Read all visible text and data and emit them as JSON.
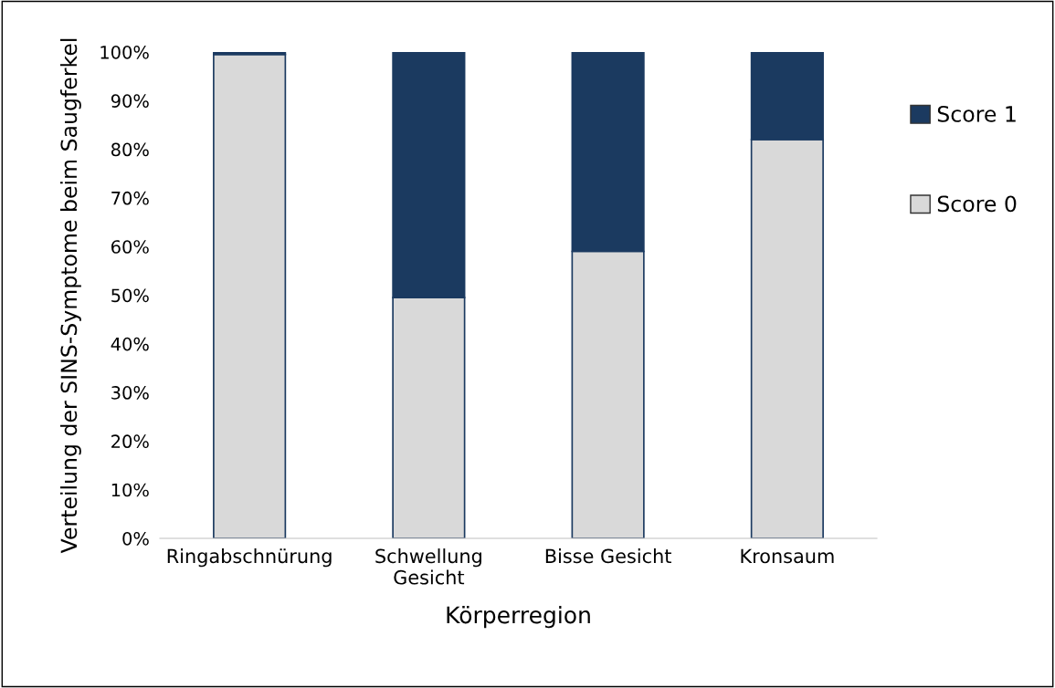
{
  "chart_data": {
    "type": "bar",
    "stacked": true,
    "xlabel": "Körperregion",
    "ylabel": "Verteilung der SINS-Symptome beim Saugferkel",
    "categories": [
      "Ringabschnürung",
      "Schwellung Gesicht",
      "Bisse Gesicht",
      "Kronsaum"
    ],
    "series": [
      {
        "name": "Score 0",
        "color": "#d9d9d9",
        "values": [
          99.5,
          49.5,
          59,
          82
        ]
      },
      {
        "name": "Score 1",
        "color": "#1b3a60",
        "values": [
          0.5,
          50.5,
          41,
          18
        ]
      }
    ],
    "ylim": [
      0,
      100
    ],
    "yticks": [
      {
        "value": 0,
        "label": "0%"
      },
      {
        "value": 10,
        "label": "10%"
      },
      {
        "value": 20,
        "label": "20%"
      },
      {
        "value": 30,
        "label": "30%"
      },
      {
        "value": 40,
        "label": "40%"
      },
      {
        "value": 50,
        "label": "50%"
      },
      {
        "value": 60,
        "label": "60%"
      },
      {
        "value": 70,
        "label": "70%"
      },
      {
        "value": 80,
        "label": "80%"
      },
      {
        "value": 90,
        "label": "90%"
      },
      {
        "value": 100,
        "label": "100%"
      }
    ],
    "grid": false,
    "legend": "right"
  }
}
